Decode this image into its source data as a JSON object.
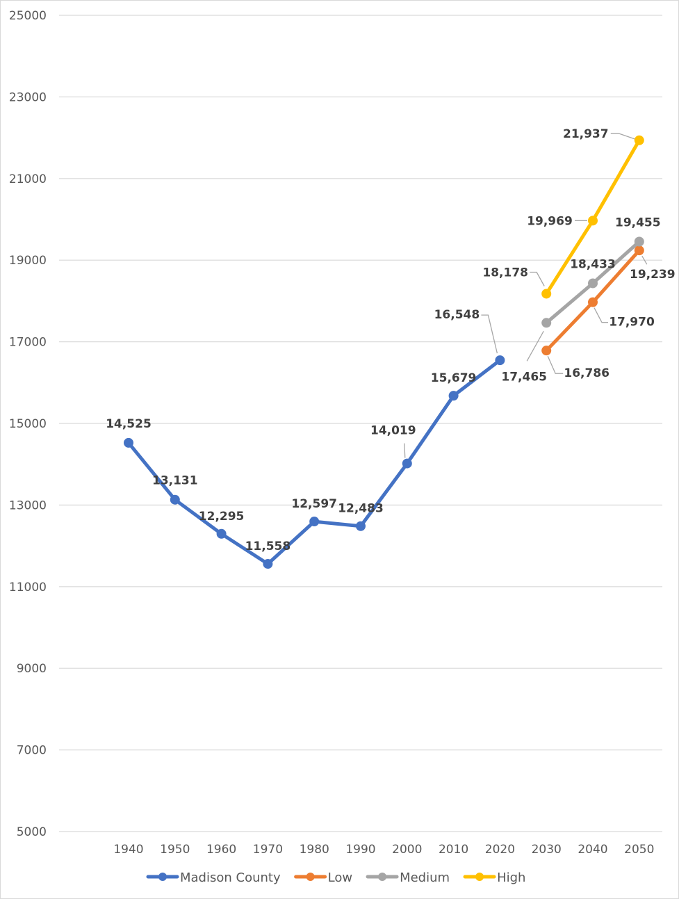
{
  "chart_data": {
    "type": "line",
    "title": "",
    "xlabel": "",
    "ylabel": "",
    "categories": [
      "1940",
      "1950",
      "1960",
      "1970",
      "1980",
      "1990",
      "2000",
      "2010",
      "2020",
      "2030",
      "2040",
      "2050"
    ],
    "y_ticks": [
      "5000",
      "7000",
      "9000",
      "11000",
      "13000",
      "15000",
      "17000",
      "19000",
      "21000",
      "23000",
      "25000"
    ],
    "ylim": [
      5000,
      25000
    ],
    "grid": true,
    "legend_position": "bottom",
    "series": [
      {
        "name": "Madison County",
        "color": "#4472c4",
        "values": [
          14525,
          13131,
          12295,
          11558,
          12597,
          12483,
          14019,
          15679,
          16548,
          null,
          null,
          null
        ],
        "labels": [
          "14,525",
          "13,131",
          "12,295",
          "11,558",
          "12,597",
          "12,483",
          "14,019",
          "15,679",
          "16,548",
          null,
          null,
          null
        ]
      },
      {
        "name": "Low",
        "color": "#ed7d31",
        "values": [
          null,
          null,
          null,
          null,
          null,
          null,
          null,
          null,
          null,
          16786,
          17970,
          19239
        ],
        "labels": [
          null,
          null,
          null,
          null,
          null,
          null,
          null,
          null,
          null,
          "16,786",
          "17,970",
          "19,239"
        ]
      },
      {
        "name": "Medium",
        "color": "#a5a5a5",
        "values": [
          null,
          null,
          null,
          null,
          null,
          null,
          null,
          null,
          null,
          17465,
          18433,
          19455
        ],
        "labels": [
          null,
          null,
          null,
          null,
          null,
          null,
          null,
          null,
          null,
          "17,465",
          "18,433",
          "19,455"
        ]
      },
      {
        "name": "High",
        "color": "#ffc000",
        "values": [
          null,
          null,
          null,
          null,
          null,
          null,
          null,
          null,
          null,
          18178,
          19969,
          21937
        ],
        "labels": [
          null,
          null,
          null,
          null,
          null,
          null,
          null,
          null,
          null,
          "18,178",
          "19,969",
          "21,937"
        ]
      }
    ]
  }
}
